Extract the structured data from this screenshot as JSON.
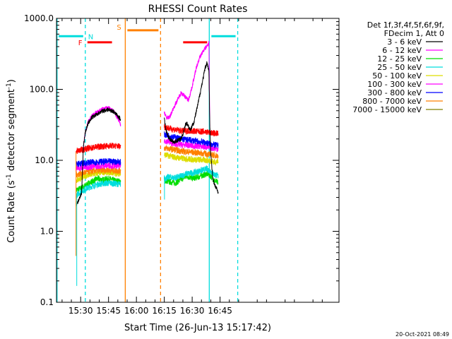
{
  "chart_data": {
    "type": "line",
    "title": "RHESSI Count Rates",
    "xlabel": "Start Time (26-Jun-13 15:17:42)",
    "ylabel_main": "Count Rate (s",
    "ylabel_sup": "-1",
    "ylabel_rest": " detector segment",
    "ylabel_sup2": "-1",
    "ylabel_close": ")",
    "y_scale": "log",
    "xlim_minutes": [
      917,
      1069
    ],
    "ylim": [
      0.1,
      1000
    ],
    "x_ticks": [
      {
        "label": "15:30",
        "minute": 930
      },
      {
        "label": "15:45",
        "minute": 945
      },
      {
        "label": "16:00",
        "minute": 960
      },
      {
        "label": "16:15",
        "minute": 975
      },
      {
        "label": "16:30",
        "minute": 990
      },
      {
        "label": "16:45",
        "minute": 1005
      }
    ],
    "y_ticks": [
      {
        "label": "0.1",
        "value": 0.1
      },
      {
        "label": "1.0",
        "value": 1
      },
      {
        "label": "10.0",
        "value": 10
      },
      {
        "label": "100.0",
        "value": 100
      },
      {
        "label": "1000.0",
        "value": 1000
      }
    ],
    "legend_header": [
      "Det 1f,3f,4f,5f,6f,9f,",
      "FDecim 1, Att 0"
    ],
    "series": [
      {
        "name": "3 - 6 keV",
        "color": "#000000",
        "segments": [
          [
            [
              927.5,
              2.4
            ],
            [
              928.5,
              2.6
            ],
            [
              929.5,
              2.9
            ],
            [
              930.5,
              3.5
            ],
            [
              931.5,
              16
            ],
            [
              932.5,
              25
            ],
            [
              934,
              33
            ],
            [
              936,
              40
            ],
            [
              939,
              45
            ],
            [
              942,
              50
            ],
            [
              945,
              52
            ],
            [
              948,
              48
            ],
            [
              950,
              42
            ],
            [
              951.5,
              38
            ]
          ],
          [
            [
              975,
              38
            ],
            [
              976,
              26
            ],
            [
              977,
              22
            ],
            [
              978,
              20
            ],
            [
              980,
              18
            ],
            [
              982,
              19
            ],
            [
              984,
              20
            ],
            [
              985,
              23
            ],
            [
              986,
              30
            ],
            [
              987,
              34
            ],
            [
              988,
              30
            ],
            [
              989,
              27
            ],
            [
              991,
              35
            ],
            [
              993,
              60
            ],
            [
              995,
              110
            ],
            [
              997,
              200
            ],
            [
              998,
              240
            ],
            [
              999,
              180
            ],
            [
              999.5,
              30
            ],
            [
              1000,
              12
            ],
            [
              1001,
              6
            ],
            [
              1002,
              4.5
            ],
            [
              1003,
              4
            ],
            [
              1004,
              3.6
            ]
          ]
        ]
      },
      {
        "name": "6 - 12 keV",
        "color": "#ff00ff",
        "segments": [
          [
            [
              931.5,
              15
            ],
            [
              932.5,
              25
            ],
            [
              934,
              34
            ],
            [
              936,
              42
            ],
            [
              939,
              48
            ],
            [
              942,
              53
            ],
            [
              945,
              55
            ],
            [
              948,
              48
            ],
            [
              950,
              39
            ],
            [
              951.5,
              32
            ]
          ],
          [
            [
              975,
              48
            ],
            [
              976,
              40
            ],
            [
              977,
              40
            ],
            [
              978,
              41
            ],
            [
              980,
              55
            ],
            [
              982,
              70
            ],
            [
              984,
              90
            ],
            [
              986,
              80
            ],
            [
              988,
              70
            ],
            [
              990,
              110
            ],
            [
              992,
              190
            ],
            [
              994,
              280
            ],
            [
              996,
              350
            ],
            [
              998,
              410
            ],
            [
              999,
              460
            ],
            [
              999.5,
              30
            ]
          ]
        ]
      },
      {
        "name": "12 - 25 keV",
        "color": "#00dd00",
        "segments": [
          [
            [
              927.5,
              3.8
            ],
            [
              930,
              4.0
            ],
            [
              933,
              4.5
            ],
            [
              936,
              5.0
            ],
            [
              939,
              5.5
            ],
            [
              942,
              5.3
            ],
            [
              945,
              5.5
            ],
            [
              948,
              5.2
            ],
            [
              950,
              5.1
            ],
            [
              951.5,
              5.0
            ]
          ],
          [
            [
              975,
              5.2
            ],
            [
              978,
              5.0
            ],
            [
              981,
              4.8
            ],
            [
              984,
              5.4
            ],
            [
              987,
              6.0
            ],
            [
              990,
              5.6
            ],
            [
              993,
              5.8
            ],
            [
              996,
              6.2
            ],
            [
              998,
              6.5
            ],
            [
              1000,
              6.0
            ],
            [
              1002,
              5.2
            ],
            [
              1004,
              4.8
            ]
          ]
        ]
      },
      {
        "name": "25 - 50 keV",
        "color": "#00dddd",
        "segments": [
          [
            [
              927.5,
              3.2
            ],
            [
              930,
              3.6
            ],
            [
              933,
              4.0
            ],
            [
              936,
              4.3
            ],
            [
              939,
              4.6
            ],
            [
              942,
              4.7
            ],
            [
              945,
              4.8
            ],
            [
              948,
              4.7
            ],
            [
              951.5,
              4.6
            ]
          ],
          [
            [
              975,
              5.6
            ],
            [
              978,
              5.8
            ],
            [
              981,
              5.7
            ],
            [
              984,
              6.0
            ],
            [
              987,
              6.5
            ],
            [
              990,
              6.6
            ],
            [
              993,
              7.0
            ],
            [
              996,
              7.3
            ],
            [
              998,
              7.6
            ],
            [
              1000,
              7.0
            ],
            [
              1002,
              6.3
            ],
            [
              1004,
              6.0
            ]
          ]
        ]
      },
      {
        "name": "50 - 100 keV",
        "color": "#dddd00",
        "segments": [
          [
            [
              927.5,
              5.2
            ],
            [
              930,
              5.6
            ],
            [
              933,
              6.1
            ],
            [
              936,
              6.3
            ],
            [
              939,
              6.6
            ],
            [
              942,
              6.8
            ],
            [
              945,
              6.8
            ],
            [
              948,
              6.6
            ],
            [
              951.5,
              6.5
            ]
          ],
          [
            [
              975,
              12
            ],
            [
              978,
              11.5
            ],
            [
              981,
              11
            ],
            [
              984,
              10.7
            ],
            [
              987,
              10.5
            ],
            [
              990,
              10.3
            ],
            [
              993,
              10.2
            ],
            [
              996,
              10.1
            ],
            [
              998,
              10.0
            ],
            [
              1000,
              9.8
            ],
            [
              1002,
              9.5
            ],
            [
              1004,
              9.5
            ]
          ]
        ]
      },
      {
        "name": "100 - 300 keV",
        "color": "#ff00ff",
        "segments": [
          [
            [
              927.5,
              7.6
            ],
            [
              930,
              7.8
            ],
            [
              933,
              8.0
            ],
            [
              936,
              8.2
            ],
            [
              939,
              8.3
            ],
            [
              942,
              8.4
            ],
            [
              945,
              8.5
            ],
            [
              948,
              8.4
            ],
            [
              951.5,
              8.3
            ]
          ],
          [
            [
              975,
              19
            ],
            [
              978,
              18
            ],
            [
              981,
              17
            ],
            [
              984,
              16.5
            ],
            [
              987,
              16.5
            ],
            [
              990,
              16
            ],
            [
              993,
              16
            ],
            [
              996,
              15.5
            ],
            [
              998,
              15.3
            ],
            [
              1000,
              15
            ],
            [
              1002,
              14.8
            ],
            [
              1004,
              14.5
            ]
          ]
        ]
      },
      {
        "name": "300 - 800 keV",
        "color": "#0000ff",
        "segments": [
          [
            [
              927.5,
              8.8
            ],
            [
              930,
              9.0
            ],
            [
              933,
              9.2
            ],
            [
              936,
              9.4
            ],
            [
              939,
              9.5
            ],
            [
              942,
              9.6
            ],
            [
              945,
              9.6
            ],
            [
              948,
              9.6
            ],
            [
              951.5,
              9.5
            ]
          ],
          [
            [
              975,
              23
            ],
            [
              978,
              22
            ],
            [
              981,
              21
            ],
            [
              984,
              20
            ],
            [
              987,
              19.5
            ],
            [
              990,
              19
            ],
            [
              993,
              18.5
            ],
            [
              996,
              18
            ],
            [
              998,
              17.5
            ],
            [
              1000,
              17
            ],
            [
              1002,
              16.5
            ],
            [
              1004,
              16
            ]
          ]
        ]
      },
      {
        "name": "800 - 7000 keV",
        "color": "#ff8000",
        "segments": [
          [
            [
              927.5,
              6.3
            ],
            [
              930,
              6.5
            ],
            [
              933,
              6.8
            ],
            [
              936,
              7.0
            ],
            [
              939,
              7.2
            ],
            [
              942,
              7.3
            ],
            [
              945,
              7.3
            ],
            [
              948,
              7.2
            ],
            [
              951.5,
              7.1
            ]
          ],
          [
            [
              975,
              15
            ],
            [
              978,
              14.5
            ],
            [
              981,
              14
            ],
            [
              984,
              13.5
            ],
            [
              987,
              13.2
            ],
            [
              990,
              13
            ],
            [
              993,
              12.8
            ],
            [
              996,
              12.5
            ],
            [
              998,
              12.3
            ],
            [
              1000,
              12
            ],
            [
              1002,
              11.8
            ],
            [
              1004,
              11.6
            ]
          ]
        ]
      },
      {
        "name": "7000 - 15000 keV",
        "color": "#808000",
        "segments": []
      },
      {
        "name": "",
        "color": "#ff0000",
        "segments": [
          [
            [
              927.5,
              13.5
            ],
            [
              930,
              14
            ],
            [
              933,
              14.5
            ],
            [
              936,
              15
            ],
            [
              939,
              15.5
            ],
            [
              942,
              15.8
            ],
            [
              945,
              16
            ],
            [
              948,
              16
            ],
            [
              951.5,
              15.8
            ]
          ],
          [
            [
              975,
              30
            ],
            [
              978,
              28
            ],
            [
              981,
              27
            ],
            [
              984,
              26
            ],
            [
              987,
              26
            ],
            [
              990,
              26
            ],
            [
              993,
              25.5
            ],
            [
              996,
              25.5
            ],
            [
              998,
              25
            ],
            [
              1000,
              24.5
            ],
            [
              1002,
              24
            ],
            [
              1004,
              24
            ]
          ]
        ]
      }
    ],
    "state_bars": [
      {
        "label": "N",
        "color": "#00dddd",
        "y": 560,
        "ranges": [
          [
            917,
            932.5
          ],
          [
            999.2,
            1014.5
          ]
        ]
      },
      {
        "label": "F",
        "color": "#ff0000",
        "y": 460,
        "ranges": [
          [
            932.5,
            948
          ],
          [
            984,
            999.2
          ]
        ]
      },
      {
        "label": "S",
        "color": "#ff8000",
        "y": 680,
        "ranges": [
          [
            954,
            973
          ]
        ]
      }
    ],
    "vlines": [
      {
        "minute": 917.3,
        "color": "#00dddd",
        "dashed": false
      },
      {
        "minute": 932.5,
        "color": "#00dddd",
        "dashed": true
      },
      {
        "minute": 954,
        "color": "#ff8000",
        "dashed": false
      },
      {
        "minute": 973,
        "color": "#ff8000",
        "dashed": true
      },
      {
        "minute": 999.2,
        "color": "#00dddd",
        "dashed": false
      },
      {
        "minute": 1014.5,
        "color": "#00dddd",
        "dashed": true
      }
    ],
    "timestamp": "20-Oct-2021 08:49"
  }
}
